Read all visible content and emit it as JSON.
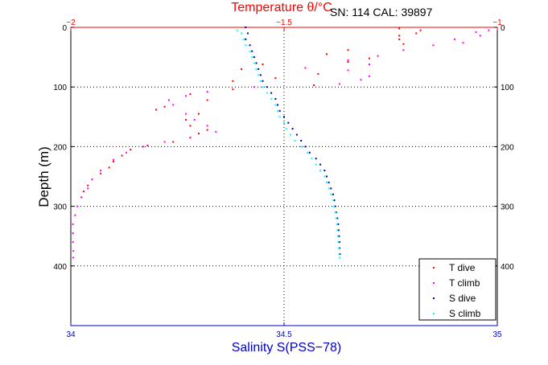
{
  "chart_data": {
    "type": "scatter",
    "title": "Temperature θ/°C",
    "annotation": "SN: 114  CAL: 39897",
    "xlabel": "Salinity S(PSS−78)",
    "x2label": "Temperature θ/°C",
    "ylabel": "Depth (m)",
    "xlim": [
      34,
      35
    ],
    "x2lim": [
      -2,
      -1
    ],
    "ylim": [
      0,
      500
    ],
    "y_reversed": true,
    "xticks": [
      "34",
      "34.5",
      "35"
    ],
    "x2ticks": [
      "−2",
      "−1.5",
      "−1"
    ],
    "yticks": [
      "0",
      "100",
      "200",
      "300",
      "400"
    ],
    "grid": true,
    "legend_position": "bottom-right",
    "colors": {
      "temperature_axis": "#ff0000",
      "salinity_axis": "#0000cc",
      "t_dive": "#ff0000",
      "t_climb": "#ff00ff",
      "s_dive": "#000099",
      "s_climb": "#00ffff"
    },
    "series": [
      {
        "name": "T dive",
        "axis": "temperature",
        "color": "#ff0000",
        "points": [
          [
            -1.23,
            2
          ],
          [
            -1.18,
            5
          ],
          [
            -1.19,
            10
          ],
          [
            -1.23,
            14
          ],
          [
            -1.23,
            20
          ],
          [
            -1.22,
            28
          ],
          [
            -1.35,
            38
          ],
          [
            -1.4,
            45
          ],
          [
            -1.3,
            52
          ],
          [
            -1.35,
            58
          ],
          [
            -1.55,
            62
          ],
          [
            -1.6,
            70
          ],
          [
            -1.42,
            78
          ],
          [
            -1.52,
            85
          ],
          [
            -1.62,
            90
          ],
          [
            -1.43,
            97
          ],
          [
            -1.62,
            104
          ],
          [
            -1.72,
            112
          ],
          [
            -1.68,
            122
          ],
          [
            -1.78,
            133
          ],
          [
            -1.8,
            138
          ],
          [
            -1.7,
            145
          ],
          [
            -1.73,
            155
          ],
          [
            -1.72,
            165
          ],
          [
            -1.68,
            172
          ],
          [
            -1.7,
            178
          ],
          [
            -1.72,
            185
          ],
          [
            -1.76,
            192
          ],
          [
            -1.82,
            198
          ],
          [
            -1.86,
            205
          ],
          [
            -1.88,
            215
          ],
          [
            -1.9,
            225
          ],
          [
            -1.91,
            235
          ],
          [
            -1.93,
            245
          ],
          [
            -1.95,
            255
          ],
          [
            -1.96,
            265
          ],
          [
            -1.97,
            275
          ],
          [
            -1.975,
            285
          ]
        ]
      },
      {
        "name": "T climb",
        "axis": "temperature",
        "color": "#ff00ff",
        "points": [
          [
            -1.02,
            5
          ],
          [
            -1.05,
            8
          ],
          [
            -1.04,
            14
          ],
          [
            -1.1,
            20
          ],
          [
            -1.08,
            26
          ],
          [
            -1.15,
            30
          ],
          [
            -1.22,
            38
          ],
          [
            -1.28,
            48
          ],
          [
            -1.35,
            55
          ],
          [
            -1.3,
            62
          ],
          [
            -1.45,
            68
          ],
          [
            -1.35,
            72
          ],
          [
            -1.3,
            82
          ],
          [
            -1.32,
            88
          ],
          [
            -1.37,
            95
          ],
          [
            -1.57,
            100
          ],
          [
            -1.68,
            108
          ],
          [
            -1.73,
            115
          ],
          [
            -1.77,
            122
          ],
          [
            -1.76,
            130
          ],
          [
            -1.73,
            145
          ],
          [
            -1.71,
            155
          ],
          [
            -1.68,
            165
          ],
          [
            -1.66,
            175
          ],
          [
            -1.72,
            185
          ],
          [
            -1.78,
            192
          ],
          [
            -1.83,
            200
          ],
          [
            -1.87,
            210
          ],
          [
            -1.9,
            222
          ],
          [
            -1.93,
            240
          ],
          [
            -1.95,
            255
          ],
          [
            -1.96,
            270
          ],
          [
            -1.975,
            285
          ],
          [
            -1.985,
            300
          ],
          [
            -1.99,
            315
          ],
          [
            -1.995,
            330
          ],
          [
            -1.995,
            345
          ],
          [
            -1.995,
            360
          ],
          [
            -1.994,
            375
          ],
          [
            -1.994,
            386
          ]
        ]
      },
      {
        "name": "S dive",
        "axis": "salinity",
        "color": "#000099",
        "points": [
          [
            34.41,
            0
          ],
          [
            34.415,
            10
          ],
          [
            34.41,
            20
          ],
          [
            34.42,
            30
          ],
          [
            34.425,
            40
          ],
          [
            34.43,
            50
          ],
          [
            34.435,
            60
          ],
          [
            34.44,
            70
          ],
          [
            34.445,
            80
          ],
          [
            34.45,
            90
          ],
          [
            34.46,
            100
          ],
          [
            34.47,
            110
          ],
          [
            34.48,
            120
          ],
          [
            34.485,
            130
          ],
          [
            34.49,
            140
          ],
          [
            34.5,
            150
          ],
          [
            34.51,
            160
          ],
          [
            34.52,
            170
          ],
          [
            34.53,
            180
          ],
          [
            34.54,
            190
          ],
          [
            34.55,
            200
          ],
          [
            34.56,
            210
          ],
          [
            34.575,
            220
          ],
          [
            34.585,
            230
          ],
          [
            34.595,
            240
          ],
          [
            34.6,
            250
          ],
          [
            34.605,
            260
          ],
          [
            34.61,
            270
          ],
          [
            34.615,
            280
          ],
          [
            34.618,
            290
          ],
          [
            34.62,
            300
          ],
          [
            34.622,
            310
          ],
          [
            34.625,
            320
          ],
          [
            34.627,
            330
          ],
          [
            34.628,
            340
          ],
          [
            34.629,
            350
          ],
          [
            34.63,
            360
          ],
          [
            34.63,
            370
          ],
          [
            34.631,
            380
          ]
        ]
      },
      {
        "name": "S climb",
        "axis": "salinity",
        "color": "#00ffff",
        "points": [
          [
            34.39,
            5
          ],
          [
            34.4,
            10
          ],
          [
            34.405,
            20
          ],
          [
            34.41,
            30
          ],
          [
            34.42,
            40
          ],
          [
            34.425,
            50
          ],
          [
            34.43,
            60
          ],
          [
            34.435,
            70
          ],
          [
            34.44,
            80
          ],
          [
            34.445,
            90
          ],
          [
            34.45,
            100
          ],
          [
            34.46,
            110
          ],
          [
            34.47,
            120
          ],
          [
            34.48,
            130
          ],
          [
            34.485,
            140
          ],
          [
            34.49,
            150
          ],
          [
            34.5,
            160
          ],
          [
            34.505,
            170
          ],
          [
            34.515,
            180
          ],
          [
            34.525,
            190
          ],
          [
            34.54,
            200
          ],
          [
            34.555,
            210
          ],
          [
            34.565,
            220
          ],
          [
            34.575,
            230
          ],
          [
            34.585,
            240
          ],
          [
            34.595,
            250
          ],
          [
            34.6,
            260
          ],
          [
            34.605,
            270
          ],
          [
            34.61,
            280
          ],
          [
            34.615,
            290
          ],
          [
            34.617,
            300
          ],
          [
            34.62,
            310
          ],
          [
            34.622,
            320
          ],
          [
            34.624,
            330
          ],
          [
            34.625,
            340
          ],
          [
            34.626,
            350
          ],
          [
            34.627,
            360
          ],
          [
            34.628,
            370
          ],
          [
            34.629,
            380
          ],
          [
            34.63,
            386
          ]
        ]
      }
    ]
  }
}
